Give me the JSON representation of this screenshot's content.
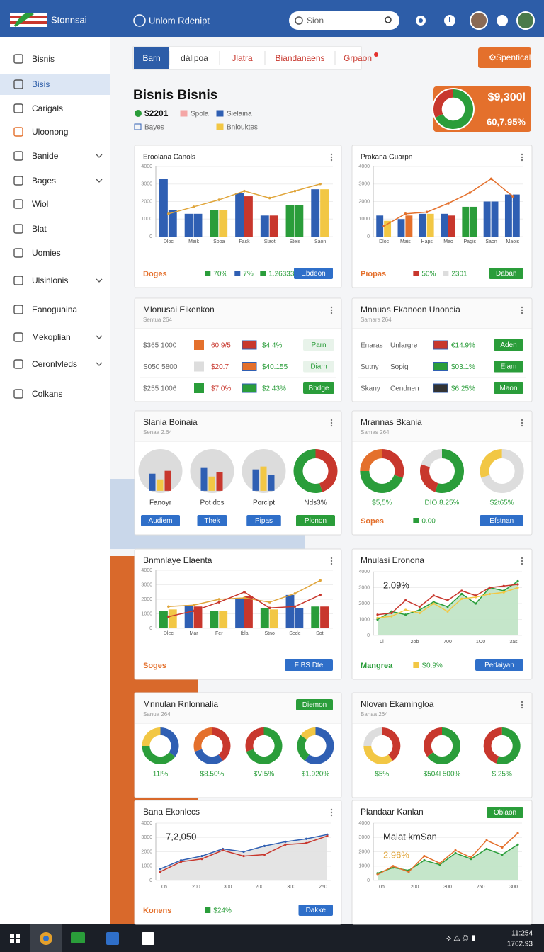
{
  "topbar": {
    "brand": "Stonnsai",
    "title": "Unlom Rdenipt",
    "search": "Sion"
  },
  "sidebar": [
    {
      "label": "Bisnis"
    },
    {
      "label": "Bisis",
      "active": true
    },
    {
      "label": "Carigals"
    },
    {
      "label": "Uloonong"
    },
    {
      "label": "Banide",
      "submenu": true
    },
    {
      "label": "Bages",
      "submenu": true
    },
    {
      "label": "Wiol"
    },
    {
      "label": "Blat"
    },
    {
      "label": "Uomies"
    },
    {
      "label": "Ulsinlonis",
      "submenu": true
    },
    {
      "label": "Eanoguaina"
    },
    {
      "label": "Mekoplian",
      "submenu": true
    },
    {
      "label": "CeronIvleds",
      "submenu": true
    },
    {
      "label": "Colkans"
    }
  ],
  "tabs": [
    {
      "label": "Barn",
      "active": true
    },
    {
      "label": "dálipoa"
    },
    {
      "label": "Jlatra"
    },
    {
      "label": "Biandanaens"
    },
    {
      "label": "Grpaon",
      "badge": true
    }
  ],
  "action_button": "Spentical",
  "summary": {
    "title": "Bisnis Bisnis",
    "stat": "$2201",
    "legend": [
      {
        "label": "Spola",
        "color": "#f4a6a6"
      },
      {
        "label": "Sielaina",
        "color": "#2f5fb3"
      },
      {
        "label": "Bayes",
        "color": "#2f5fb3"
      },
      {
        "label": "Bnlouktes",
        "color": "#f2c744"
      }
    ],
    "kpi": {
      "value": "$9,300l",
      "change": "60,7.95%",
      "ring": {
        "values": [
          68,
          32
        ],
        "colors": [
          "#2a9d3a",
          "#c8372d"
        ]
      }
    }
  },
  "cards": [
    {
      "type": "bar",
      "title": "Eroolana Canols",
      "ylim": [
        0,
        4000
      ],
      "yticks": [
        0,
        1000,
        2000,
        3000,
        4000
      ],
      "categories": [
        "Dloc",
        "Meik",
        "Sooa",
        "Fask",
        "Slaot",
        "Steis",
        "Saon"
      ],
      "series": [
        {
          "colors": [
            "#2f5fb3",
            "#2f5fb3",
            "#2a9d3a",
            "#2f5fb3",
            "#2f5fb3",
            "#2a9d3a",
            "#2f5fb3"
          ],
          "values": [
            3300,
            1300,
            1500,
            2500,
            1200,
            1800,
            2700
          ]
        },
        {
          "colors": [
            "#2f5fb3",
            "#2f5fb3",
            "#f2c744",
            "#c8372d",
            "#c8372d",
            "#2a9d3a",
            "#f2c744"
          ],
          "values": [
            1500,
            1300,
            1500,
            2300,
            1200,
            1800,
            2700
          ]
        }
      ],
      "lines": [
        {
          "color": "#e0a53a",
          "values": [
            1300,
            1700,
            2100,
            2600,
            2200,
            2600,
            3000
          ]
        }
      ],
      "footer": {
        "label": "Doges",
        "label_color": "#e4702c",
        "chips": [
          {
            "color": "#2a9d3a",
            "text": "70%"
          },
          {
            "color": "#2f5fb3",
            "text": "7%"
          },
          {
            "color": "#2a9d3a",
            "text": "1.26333"
          }
        ],
        "buttons": [
          {
            "text": "Ebdeon",
            "color": "#2f6fc9"
          }
        ]
      }
    },
    {
      "type": "bar",
      "title": "Prokana Guarpn",
      "ylim": [
        0,
        4000
      ],
      "yticks": [
        0,
        1000,
        2000,
        3000,
        4000
      ],
      "categories": [
        "Dloc",
        "Mais",
        "Haps",
        "Meo",
        "Pagis",
        "Saon",
        "Maois"
      ],
      "series": [
        {
          "colors": [
            "#2f5fb3",
            "#2f5fb3",
            "#2f5fb3",
            "#2f5fb3",
            "#2a9d3a",
            "#2f5fb3",
            "#2f5fb3"
          ],
          "values": [
            1200,
            1000,
            1300,
            1300,
            1700,
            2000,
            2400
          ]
        },
        {
          "colors": [
            "#f2c744",
            "#e4702c",
            "#f2c744",
            "#c8372d",
            "#2a9d3a",
            "#2f5fb3",
            "#2f5fb3"
          ],
          "values": [
            900,
            1200,
            1300,
            1200,
            1700,
            2000,
            2400
          ]
        }
      ],
      "lines": [
        {
          "color": "#e4702c",
          "values": [
            600,
            1300,
            1400,
            1900,
            2500,
            3300,
            2300
          ]
        }
      ],
      "footer": {
        "label": "Piopas",
        "label_color": "#e4702c",
        "chips": [
          {
            "color": "#c8372d",
            "text": "50%"
          },
          {
            "color": "#dddddd",
            "text": "2301"
          }
        ],
        "buttons": [
          {
            "text": "Daban",
            "color": "#2a9d3a"
          }
        ]
      }
    },
    {
      "type": "table",
      "title": "Mlonusai Eikenkon",
      "subtitle": "Sentua 264",
      "rows": [
        {
          "cells": [
            "$365 1000",
            "60.9/5",
            "$4.4%"
          ],
          "swatch": "#e4702c",
          "flag": "#c8372d",
          "button": {
            "text": "Parn",
            "color": "#e8f3ea",
            "text_color": "#2a9d3a"
          }
        },
        {
          "cells": [
            "S050 5800",
            "$20.7",
            "$40.155"
          ],
          "swatch": "#dddddd",
          "flag": "#e4702c",
          "button": {
            "text": "Diam",
            "color": "#e8f3ea",
            "text_color": "#2a9d3a"
          }
        },
        {
          "cells": [
            "$255 1006",
            "$7.0%",
            "$2,43%"
          ],
          "swatch": "#2a9d3a",
          "flag": "#2a9d3a",
          "button": {
            "text": "Bbdge",
            "color": "#2a9d3a",
            "text_color": "#ffffff"
          }
        }
      ]
    },
    {
      "type": "table",
      "title": "Mnnuas Ekanoon Unoncia",
      "subtitle": "Samara 264",
      "rows": [
        {
          "cells": [
            "Enaras",
            "Unlargre",
            "€14.9%"
          ],
          "flag": "#c8372d",
          "button": {
            "text": "Aden",
            "color": "#2a9d3a",
            "text_color": "#ffffff"
          }
        },
        {
          "cells": [
            "Sutny",
            "Sopig",
            "$03.1%"
          ],
          "flag": "#2a9d3a",
          "button": {
            "text": "Eiam",
            "color": "#2a9d3a",
            "text_color": "#ffffff"
          }
        },
        {
          "cells": [
            "Skany",
            "Cendnen",
            "$6,25%"
          ],
          "flag": "#333333",
          "button": {
            "text": "Maon",
            "color": "#2a9d3a",
            "text_color": "#ffffff"
          }
        }
      ]
    },
    {
      "type": "pies",
      "title": "Slania Boinaia",
      "subtitle": "Senaa 2.64",
      "label_color": "#333333",
      "items": [
        {
          "type": "gauge",
          "label": "Fanoyr",
          "values": [
            60,
            40,
            70
          ],
          "colors": [
            "#2f5fb3",
            "#f2c744",
            "#c8372d"
          ]
        },
        {
          "type": "gauge",
          "label": "Pot dos",
          "values": [
            80,
            50,
            65
          ],
          "colors": [
            "#2f5fb3",
            "#f2c744",
            "#c8372d"
          ]
        },
        {
          "type": "gauge",
          "label": "Porclpt",
          "values": [
            75,
            85,
            55
          ],
          "colors": [
            "#2f5fb3",
            "#f2c744",
            "#2f5fb3"
          ]
        },
        {
          "type": "donut",
          "label": "Nds3%",
          "values": [
            45,
            55
          ],
          "colors": [
            "#c8372d",
            "#2a9d3a"
          ]
        }
      ],
      "footer": {
        "buttons": [
          {
            "text": "Audiem",
            "color": "#2f6fc9"
          },
          {
            "text": "Thek",
            "color": "#2f6fc9"
          },
          {
            "text": "Pipas",
            "color": "#2f6fc9"
          },
          {
            "text": "Plonon",
            "color": "#2a9d3a"
          }
        ]
      }
    },
    {
      "type": "pies",
      "title": "Mrannas Bkania",
      "subtitle": "Samas 264",
      "label_color": "#2a9d3a",
      "items": [
        {
          "type": "donut",
          "label": "$5,5%",
          "values": [
            30,
            45,
            25
          ],
          "colors": [
            "#c8372d",
            "#2a9d3a",
            "#e4702c"
          ]
        },
        {
          "type": "donut",
          "label": "DIO.8.25%",
          "values": [
            55,
            25,
            20
          ],
          "colors": [
            "#2a9d3a",
            "#c8372d",
            "#dddddd"
          ]
        },
        {
          "type": "donut",
          "label": "$2t65%",
          "values": [
            70,
            30
          ],
          "colors": [
            "#dddddd",
            "#f2c744"
          ]
        }
      ],
      "footer": {
        "label": "Sopes",
        "label_color": "#e4702c",
        "chips": [
          {
            "color": "#2a9d3a",
            "text": "0.00"
          }
        ],
        "buttons": [
          {
            "text": "Efstnan",
            "color": "#2f6fc9"
          }
        ]
      }
    },
    {
      "type": "bar",
      "title": "Bnmnlaye Elaenta",
      "ylim": [
        0,
        4000
      ],
      "yticks": [
        0,
        1000,
        2000,
        3000,
        4000
      ],
      "categories": [
        "Dlec",
        "Mar",
        "Fer",
        "Ibla",
        "Stno",
        "Sede",
        "Sotl"
      ],
      "series": [
        {
          "colors": [
            "#2a9d3a",
            "#2f5fb3",
            "#2a9d3a",
            "#2f5fb3",
            "#2a9d3a",
            "#2f5fb3",
            "#2a9d3a"
          ],
          "values": [
            1200,
            1600,
            1200,
            2100,
            1400,
            2300,
            1500
          ]
        },
        {
          "colors": [
            "#f2c744",
            "#c8372d",
            "#f2c744",
            "#c8372d",
            "#f2c744",
            "#2f5fb3",
            "#c8372d"
          ],
          "values": [
            1300,
            1500,
            1200,
            2200,
            1300,
            1400,
            1500
          ]
        }
      ],
      "lines": [
        {
          "color": "#e0a53a",
          "values": [
            1500,
            1600,
            2000,
            2100,
            1800,
            2400,
            3300
          ]
        },
        {
          "color": "#c8372d",
          "values": [
            800,
            1200,
            1800,
            2500,
            1400,
            1500,
            2300
          ]
        }
      ],
      "footer": {
        "label": "Soges",
        "label_color": "#e4702c",
        "buttons": [
          {
            "text": "F BS Dte",
            "color": "#2f6fc9"
          }
        ]
      }
    },
    {
      "type": "line",
      "title": "Mnulasi Eronona",
      "ylim": [
        0,
        4000
      ],
      "yticks": [
        0,
        1000,
        2000,
        3000,
        4000
      ],
      "xlabels": [
        "0l",
        "2ob",
        "700",
        "1O0",
        "3as"
      ],
      "annotations": [
        {
          "text": "2.09%",
          "color": "#222222"
        }
      ],
      "series": [
        {
          "color": "#2a9d3a",
          "area": "#bfe3c4",
          "values": [
            1000,
            1500,
            1300,
            1600,
            2100,
            1800,
            2600,
            2000,
            3000,
            2800,
            3400
          ]
        },
        {
          "color": "#c8372d",
          "values": [
            1300,
            1400,
            2200,
            1800,
            2500,
            2200,
            2800,
            2500,
            3000,
            3100,
            3200
          ]
        },
        {
          "color": "#f2c744",
          "values": [
            1100,
            1200,
            1600,
            1400,
            2000,
            1500,
            2300,
            2400,
            2600,
            2700,
            3000
          ]
        }
      ],
      "footer": {
        "label": "Mangrea",
        "label_color": "#2a9d3a",
        "chips": [
          {
            "color": "#f2c744",
            "text": "S0.9%"
          }
        ],
        "buttons": [
          {
            "text": "Pedaiyan",
            "color": "#2f6fc9"
          }
        ]
      }
    },
    {
      "type": "pies",
      "title": "Mnnulan Rnlonnalia",
      "subtitle": "Sanua 264",
      "label_color": "#2a9d3a",
      "header_button": {
        "text": "Diemon",
        "color": "#2a9d3a"
      },
      "items": [
        {
          "type": "donut",
          "label": "11l%",
          "values": [
            35,
            40,
            25
          ],
          "colors": [
            "#2f5fb3",
            "#2a9d3a",
            "#f2c744"
          ]
        },
        {
          "type": "donut",
          "label": "$8.50%",
          "values": [
            40,
            30,
            30
          ],
          "colors": [
            "#c8372d",
            "#2f5fb3",
            "#e4702c"
          ]
        },
        {
          "type": "donut",
          "label": "$VI5%",
          "values": [
            70,
            30
          ],
          "colors": [
            "#2a9d3a",
            "#c8372d"
          ]
        },
        {
          "type": "donut",
          "label": "$1.920%",
          "values": [
            60,
            25,
            15
          ],
          "colors": [
            "#2f5fb3",
            "#2a9d3a",
            "#f2c744"
          ]
        }
      ]
    },
    {
      "type": "pies",
      "title": "Nlovan Ekamingloa",
      "subtitle": "Banaa 264",
      "label_color": "#2a9d3a",
      "items": [
        {
          "type": "donut",
          "label": "$5%",
          "values": [
            40,
            35,
            25
          ],
          "colors": [
            "#c8372d",
            "#f2c744",
            "#dddddd"
          ]
        },
        {
          "type": "donut",
          "label": "$504l 500%",
          "values": [
            65,
            35
          ],
          "colors": [
            "#2a9d3a",
            "#c8372d"
          ]
        },
        {
          "type": "donut",
          "label": "$.25%",
          "values": [
            55,
            45
          ],
          "colors": [
            "#2a9d3a",
            "#c8372d"
          ]
        }
      ]
    },
    {
      "type": "line",
      "title": "Bana Ekonlecs",
      "ylim": [
        0,
        4000
      ],
      "yticks": [
        0,
        1000,
        2000,
        3000,
        4000
      ],
      "xlabels": [
        "0n",
        "200",
        "300",
        "200",
        "300",
        "250"
      ],
      "annotations": [
        {
          "text": "7,2,050",
          "color": "#222222"
        }
      ],
      "series": [
        {
          "color": "#2f5fb3",
          "area": "#e1e1e1",
          "values": [
            800,
            1400,
            1700,
            2200,
            2000,
            2400,
            2700,
            2900,
            3200
          ]
        },
        {
          "color": "#c8372d",
          "values": [
            600,
            1300,
            1500,
            2100,
            1700,
            1800,
            2500,
            2600,
            3100
          ]
        }
      ],
      "footer": {
        "label": "Konens",
        "label_color": "#e4702c",
        "chips": [
          {
            "color": "#2a9d3a",
            "text": "$24%"
          }
        ],
        "buttons": [
          {
            "text": "Dakke",
            "color": "#2f6fc9"
          }
        ]
      }
    },
    {
      "type": "line",
      "title": "Plandaar Kanlan",
      "ylim": [
        0,
        4000
      ],
      "yticks": [
        0,
        1000,
        2000,
        3000,
        4000
      ],
      "header_button": {
        "text": "Oblaon",
        "color": "#2a9d3a"
      },
      "xlabels": [
        "0n",
        "200",
        "300",
        "250",
        "300"
      ],
      "annotations": [
        {
          "text": "Malat kmSan",
          "color": "#222222"
        },
        {
          "text": "2.96%",
          "color": "#e0a53a"
        }
      ],
      "series": [
        {
          "color": "#2a9d3a",
          "area": "#bfe3c4",
          "values": [
            500,
            900,
            700,
            1400,
            1100,
            1900,
            1500,
            2200,
            1800,
            2500
          ]
        },
        {
          "color": "#e4702c",
          "values": [
            400,
            1000,
            600,
            1700,
            1200,
            2100,
            1600,
            2800,
            2300,
            3300
          ]
        }
      ]
    }
  ],
  "taskbar": {
    "time": "11:254",
    "date": "1762.93"
  }
}
